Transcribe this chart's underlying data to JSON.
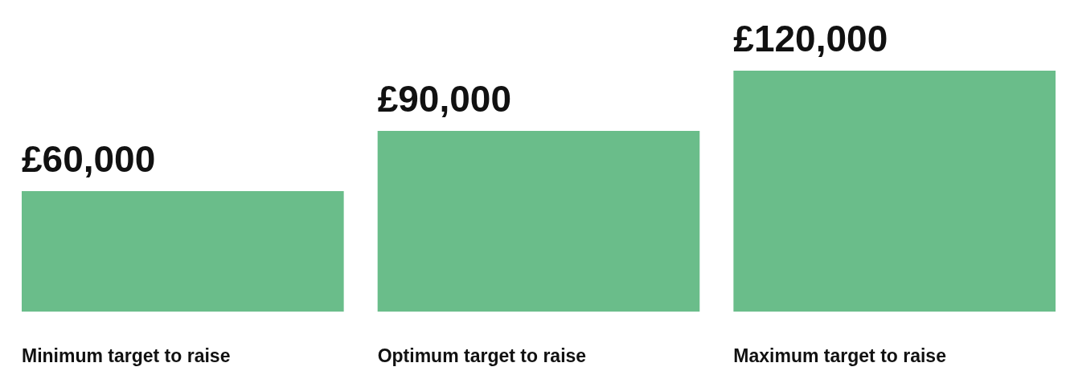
{
  "chart_data": {
    "type": "bar",
    "categories": [
      "Minimum target to raise",
      "Optimum target to raise",
      "Maximum target to raise"
    ],
    "values": [
      60000,
      90000,
      120000
    ],
    "value_labels": [
      "£60,000",
      "£90,000",
      "£120,000"
    ],
    "color": "#6abd8a",
    "grid": false
  }
}
